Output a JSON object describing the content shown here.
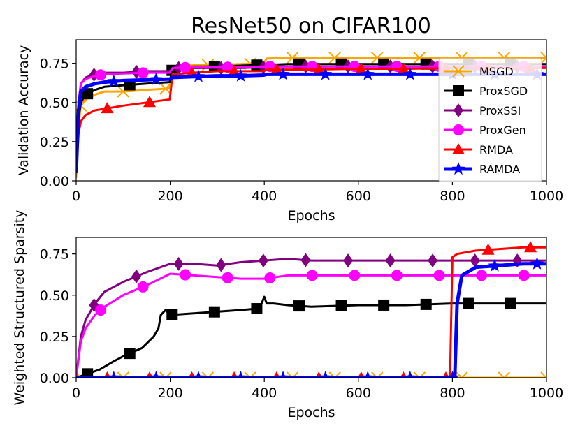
{
  "title": "ResNet50 on CIFAR100",
  "chart_data": [
    {
      "type": "line",
      "xlabel": "Epochs",
      "ylabel": "Validation Accuracy",
      "xlim": [
        0,
        1000
      ],
      "ylim": [
        0,
        0.9
      ],
      "xticks": [
        "0",
        "200",
        "400",
        "600",
        "800",
        "1000"
      ],
      "yticks": [
        "0.00",
        "0.25",
        "0.50",
        "0.75"
      ],
      "legend_position": "right",
      "series": [
        {
          "name": "MSGD",
          "color": "#ffa500",
          "marker": "x",
          "x": [
            0,
            5,
            10,
            20,
            40,
            60,
            100,
            150,
            199,
            205,
            250,
            300,
            350,
            399,
            405,
            450,
            500,
            600,
            700,
            800,
            900,
            1000
          ],
          "y": [
            0.02,
            0.35,
            0.48,
            0.52,
            0.55,
            0.57,
            0.57,
            0.58,
            0.59,
            0.72,
            0.74,
            0.74,
            0.745,
            0.75,
            0.78,
            0.785,
            0.785,
            0.785,
            0.785,
            0.785,
            0.785,
            0.785
          ]
        },
        {
          "name": "ProxSGD",
          "color": "#000000",
          "marker": "s",
          "x": [
            0,
            5,
            10,
            20,
            40,
            60,
            100,
            150,
            199,
            205,
            250,
            300,
            350,
            399,
            405,
            450,
            500,
            600,
            700,
            800,
            900,
            1000
          ],
          "y": [
            0.05,
            0.4,
            0.5,
            0.55,
            0.58,
            0.6,
            0.61,
            0.62,
            0.63,
            0.72,
            0.73,
            0.73,
            0.735,
            0.74,
            0.74,
            0.745,
            0.745,
            0.745,
            0.745,
            0.745,
            0.745,
            0.745
          ]
        },
        {
          "name": "ProxSSI",
          "color": "#800080",
          "marker": "d",
          "x": [
            0,
            5,
            10,
            20,
            40,
            60,
            100,
            150,
            199,
            205,
            250,
            300,
            350,
            399,
            405,
            450,
            500,
            600,
            700,
            800,
            900,
            1000
          ],
          "y": [
            0.1,
            0.5,
            0.62,
            0.66,
            0.68,
            0.69,
            0.69,
            0.7,
            0.7,
            0.72,
            0.72,
            0.72,
            0.72,
            0.725,
            0.73,
            0.73,
            0.73,
            0.73,
            0.73,
            0.73,
            0.73,
            0.73
          ]
        },
        {
          "name": "ProxGen",
          "color": "#ff00ff",
          "marker": "o",
          "x": [
            0,
            5,
            10,
            20,
            40,
            60,
            100,
            150,
            199,
            205,
            250,
            300,
            350,
            399,
            405,
            450,
            500,
            600,
            700,
            800,
            900,
            1000
          ],
          "y": [
            0.08,
            0.5,
            0.62,
            0.65,
            0.67,
            0.68,
            0.685,
            0.69,
            0.69,
            0.72,
            0.725,
            0.725,
            0.725,
            0.725,
            0.73,
            0.73,
            0.73,
            0.73,
            0.73,
            0.73,
            0.73,
            0.73
          ]
        },
        {
          "name": "RMDA",
          "color": "#ff0000",
          "marker": "^",
          "x": [
            0,
            5,
            10,
            20,
            40,
            60,
            100,
            150,
            199,
            205,
            250,
            300,
            350,
            399,
            405,
            450,
            500,
            600,
            700,
            800,
            900,
            1000
          ],
          "y": [
            0.05,
            0.3,
            0.38,
            0.42,
            0.45,
            0.46,
            0.48,
            0.5,
            0.52,
            0.68,
            0.69,
            0.7,
            0.7,
            0.7,
            0.71,
            0.71,
            0.71,
            0.715,
            0.715,
            0.72,
            0.72,
            0.72
          ]
        },
        {
          "name": "RAMDA",
          "color": "#0000ff",
          "marker": "*",
          "x": [
            0,
            5,
            10,
            20,
            40,
            60,
            100,
            150,
            199,
            205,
            250,
            300,
            350,
            399,
            405,
            450,
            500,
            600,
            700,
            800,
            900,
            1000
          ],
          "y": [
            0.05,
            0.45,
            0.57,
            0.6,
            0.62,
            0.63,
            0.64,
            0.645,
            0.65,
            0.66,
            0.665,
            0.67,
            0.67,
            0.675,
            0.68,
            0.68,
            0.68,
            0.68,
            0.68,
            0.68,
            0.68,
            0.68
          ]
        }
      ]
    },
    {
      "type": "line",
      "xlabel": "Epochs",
      "ylabel": "Weighted Structured Sparsity",
      "xlim": [
        0,
        1000
      ],
      "ylim": [
        0,
        0.85
      ],
      "xticks": [
        "0",
        "200",
        "400",
        "600",
        "800",
        "1000"
      ],
      "yticks": [
        "0.00",
        "0.25",
        "0.50",
        "0.75"
      ],
      "series": [
        {
          "name": "MSGD",
          "color": "#ffa500",
          "marker": "x",
          "x": [
            0,
            200,
            400,
            600,
            800,
            1000
          ],
          "y": [
            0,
            0,
            0,
            0,
            0,
            0
          ]
        },
        {
          "name": "ProxSGD",
          "color": "#000000",
          "marker": "s",
          "x": [
            0,
            10,
            30,
            50,
            80,
            100,
            140,
            165,
            175,
            180,
            190,
            200,
            250,
            300,
            350,
            390,
            400,
            405,
            420,
            450,
            500,
            600,
            700,
            800,
            900,
            1000
          ],
          "y": [
            0,
            0.01,
            0.03,
            0.05,
            0.1,
            0.13,
            0.18,
            0.25,
            0.3,
            0.38,
            0.41,
            0.38,
            0.39,
            0.4,
            0.41,
            0.42,
            0.49,
            0.45,
            0.45,
            0.44,
            0.43,
            0.44,
            0.44,
            0.45,
            0.45,
            0.45
          ]
        },
        {
          "name": "ProxSSI",
          "color": "#800080",
          "marker": "d",
          "x": [
            0,
            10,
            20,
            40,
            60,
            100,
            150,
            200,
            250,
            300,
            350,
            400,
            450,
            500,
            600,
            700,
            800,
            900,
            1000
          ],
          "y": [
            0,
            0.25,
            0.35,
            0.45,
            0.52,
            0.58,
            0.64,
            0.69,
            0.69,
            0.68,
            0.7,
            0.71,
            0.72,
            0.71,
            0.71,
            0.71,
            0.71,
            0.71,
            0.71
          ]
        },
        {
          "name": "ProxGen",
          "color": "#ff00ff",
          "marker": "o",
          "x": [
            0,
            10,
            20,
            40,
            60,
            100,
            150,
            200,
            250,
            300,
            350,
            400,
            450,
            500,
            600,
            700,
            800,
            900,
            1000
          ],
          "y": [
            0,
            0.22,
            0.3,
            0.38,
            0.43,
            0.5,
            0.56,
            0.63,
            0.62,
            0.61,
            0.6,
            0.6,
            0.62,
            0.62,
            0.62,
            0.62,
            0.62,
            0.62,
            0.62
          ]
        },
        {
          "name": "RMDA",
          "color": "#ff0000",
          "marker": "^",
          "x": [
            0,
            795,
            800,
            810,
            850,
            900,
            950,
            1000
          ],
          "y": [
            0,
            0,
            0.73,
            0.75,
            0.77,
            0.78,
            0.79,
            0.79
          ]
        },
        {
          "name": "RAMDA",
          "color": "#0000ff",
          "marker": "*",
          "x": [
            0,
            805,
            810,
            820,
            850,
            900,
            950,
            1000
          ],
          "y": [
            0,
            0,
            0.45,
            0.62,
            0.67,
            0.68,
            0.69,
            0.69
          ]
        }
      ]
    }
  ]
}
